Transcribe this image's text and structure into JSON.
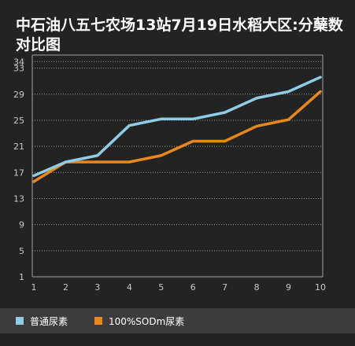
{
  "chart_data": {
    "type": "line",
    "title": "中石油八五七农场13站7月19日水稻大区:分蘖数对比图",
    "xlabel": "",
    "ylabel": "",
    "x": [
      1,
      2,
      3,
      4,
      5,
      6,
      7,
      8,
      9,
      10
    ],
    "x_tick_labels": [
      "1",
      "2",
      "3",
      "4",
      "5",
      "6",
      "7",
      "8",
      "9",
      "10"
    ],
    "y_tick_labels": [
      "1",
      "5",
      "9",
      "13",
      "17",
      "21",
      "25",
      "29",
      "33",
      "34"
    ],
    "y_tick_values": [
      1,
      5,
      9,
      13,
      17,
      21,
      25,
      29,
      33,
      34
    ],
    "ylim": [
      1,
      35
    ],
    "grid": true,
    "legend_position": "bottom",
    "series": [
      {
        "name": "普通尿素",
        "color": "#8fcde6",
        "values": [
          16.5,
          18.6,
          19.6,
          24.2,
          25.2,
          25.2,
          26.2,
          28.4,
          29.4,
          31.6
        ]
      },
      {
        "name": "100%SODm尿素",
        "color": "#e8871e",
        "values": [
          15.6,
          18.6,
          18.6,
          18.6,
          19.6,
          21.8,
          21.8,
          24.1,
          25.1,
          29.4
        ]
      }
    ]
  }
}
